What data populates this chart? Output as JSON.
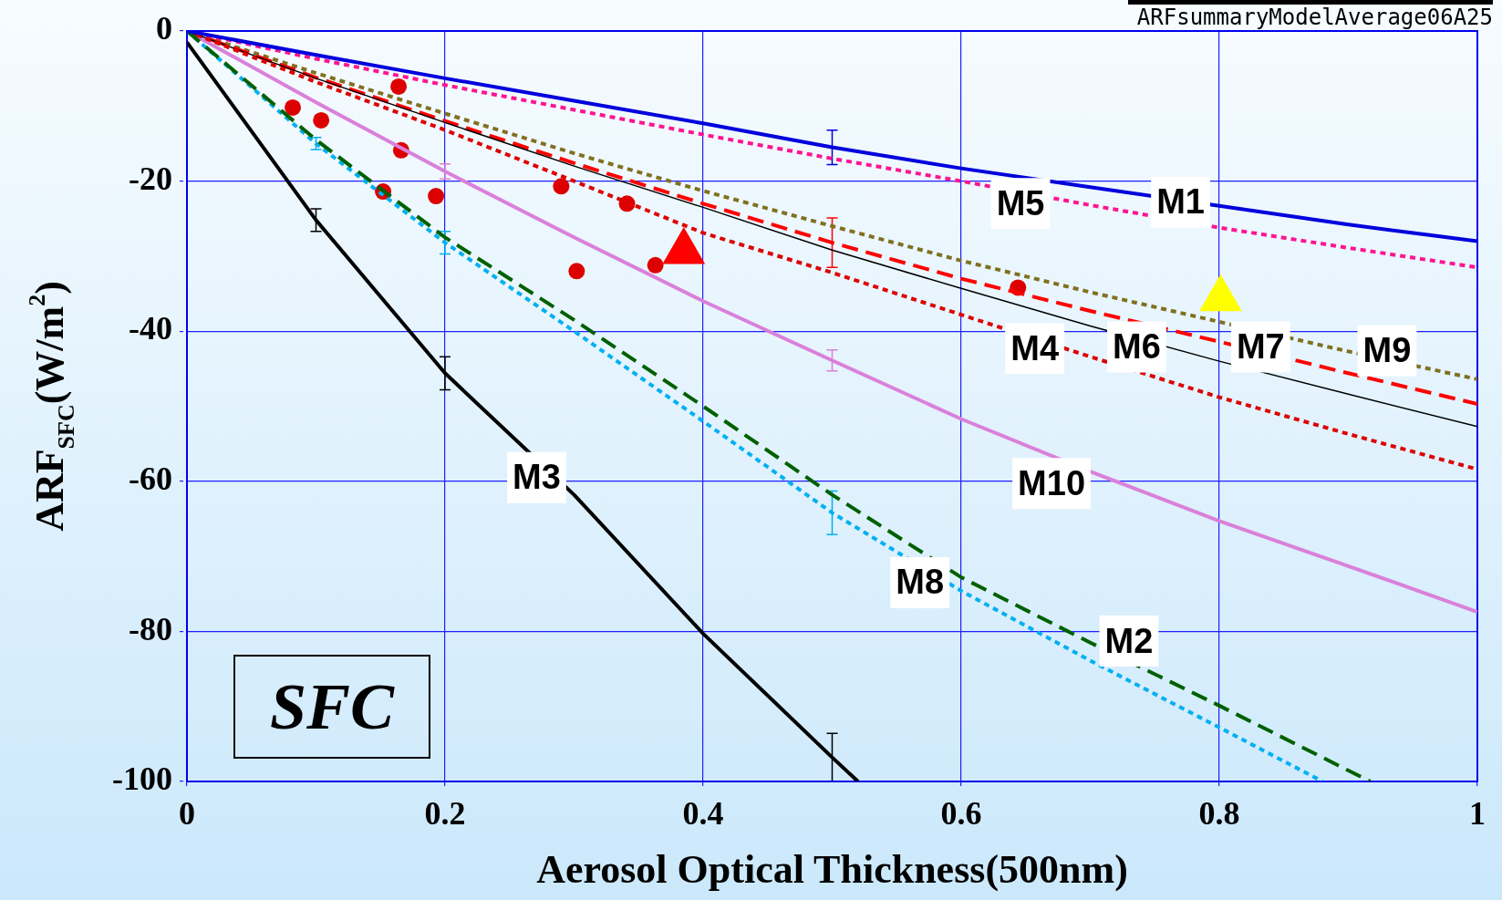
{
  "chart_data": {
    "type": "line",
    "xlabel": "Aerosol Optical Thickness(500nm)",
    "ylabel": "ARF$_{SFC}$(W/m$^{2}$)",
    "annotations": [
      "ARFsummaryModelAverage06A25",
      "SFC"
    ],
    "xlim": [
      0,
      1
    ],
    "xticks": [
      0,
      0.2,
      0.4,
      0.6,
      0.8,
      1
    ],
    "ylim": [
      -100,
      0
    ],
    "yticks": [
      -100,
      -80,
      -60,
      -40,
      -20,
      0
    ],
    "grid": true,
    "legend": false,
    "marker": "none",
    "series": [
      {
        "name": "M1",
        "type": "line",
        "color": "#0000dd",
        "line_style": "solid",
        "x": [
          0,
          0.1,
          0.2,
          0.3,
          0.4,
          0.5,
          0.6,
          0.7,
          0.8,
          0.9,
          1
        ],
        "values": [
          0,
          -3.2,
          -6.3,
          -9.3,
          -12.3,
          -15.5,
          -18.3,
          -20.8,
          -23.3,
          -25.8,
          -28
        ],
        "errors": [
          null,
          null,
          null,
          null,
          null,
          2.3,
          null,
          null,
          null,
          null,
          null
        ]
      },
      {
        "name": "M2",
        "type": "line",
        "color": "#006000",
        "line_style": "dashed",
        "x": [
          0,
          0.1,
          0.2,
          0.3,
          0.4,
          0.5,
          0.6,
          0.7,
          0.8,
          0.917
        ],
        "values": [
          0,
          -14.5,
          -27.5,
          -38.5,
          -50,
          -61.8,
          -72.8,
          -81.5,
          -89.9,
          -100
        ]
      },
      {
        "name": "M3",
        "type": "line",
        "color": "#000000",
        "line_style": "solid",
        "x": [
          0,
          0.1,
          0.2,
          0.3,
          0.4,
          0.5,
          0.52
        ],
        "values": [
          -1.5,
          -25.2,
          -45.6,
          -61.8,
          -80.3,
          -96.8,
          -100
        ],
        "errors": [
          null,
          1.5,
          2.2,
          null,
          null,
          3.2,
          null
        ]
      },
      {
        "name": "M4",
        "type": "line",
        "color": "#dd0000",
        "line_style": "dotted",
        "x": [
          0,
          0.1,
          0.2,
          0.3,
          0.4,
          0.5,
          0.6,
          0.7,
          0.8,
          0.9,
          1
        ],
        "values": [
          0,
          -6.8,
          -13.2,
          -20,
          -26.9,
          -32.2,
          -37.8,
          -43.4,
          -48.8,
          -53.7,
          -58.4
        ]
      },
      {
        "name": "M5",
        "type": "line",
        "color": "#ff1493",
        "line_style": "dotted",
        "x": [
          0,
          0.1,
          0.2,
          0.3,
          0.4,
          0.5,
          0.6,
          0.7,
          0.8,
          0.9,
          1
        ],
        "values": [
          0,
          -3.7,
          -7.2,
          -10.5,
          -13.8,
          -17,
          -20,
          -23.2,
          -26.2,
          -28.9,
          -31.5
        ]
      },
      {
        "name": "M6",
        "type": "line",
        "color": "#000000",
        "line_style": "solid",
        "x": [
          0,
          0.1,
          0.2,
          0.3,
          0.4,
          0.5,
          0.6,
          0.7,
          0.8,
          0.9,
          1
        ],
        "values": [
          0,
          -6.3,
          -12.2,
          -18,
          -23.5,
          -29.2,
          -34.3,
          -39.3,
          -44,
          -48.4,
          -52.7
        ]
      },
      {
        "name": "M7",
        "type": "line",
        "color": "#ff0000",
        "line_style": "dashed",
        "x": [
          0,
          0.1,
          0.2,
          0.3,
          0.4,
          0.5,
          0.6,
          0.7,
          0.8,
          0.9,
          1
        ],
        "values": [
          0,
          -6.2,
          -12,
          -17.6,
          -23,
          -28.2,
          -33,
          -37.3,
          -41.4,
          -45.6,
          -49.7
        ],
        "errors": [
          null,
          null,
          null,
          null,
          null,
          3.3,
          null,
          null,
          null,
          null,
          null
        ]
      },
      {
        "name": "M8",
        "type": "line",
        "color": "#00b0f0",
        "line_style": "dotted",
        "x": [
          0,
          0.1,
          0.2,
          0.3,
          0.4,
          0.5,
          0.6,
          0.7,
          0.8,
          0.88
        ],
        "values": [
          0,
          -15,
          -28.2,
          -40,
          -52,
          -64.2,
          -74.6,
          -83.9,
          -92.8,
          -100
        ],
        "errors": [
          null,
          0.8,
          1.5,
          null,
          null,
          2.9,
          null,
          null,
          null,
          null
        ]
      },
      {
        "name": "M9",
        "type": "line",
        "color": "#807020",
        "line_style": "dotted",
        "x": [
          0,
          0.1,
          0.2,
          0.3,
          0.4,
          0.5,
          0.6,
          0.7,
          0.8,
          0.9,
          1
        ],
        "values": [
          0,
          -5.6,
          -11,
          -16.3,
          -21.3,
          -26,
          -30.6,
          -34.8,
          null,
          -42.7,
          -46.4
        ]
      },
      {
        "name": "M10",
        "type": "line",
        "color": "#da80da",
        "line_style": "solid",
        "x": [
          0,
          0.1,
          0.2,
          0.3,
          0.4,
          0.5,
          0.6,
          0.7,
          0.8,
          0.9,
          1
        ],
        "values": [
          0,
          -9.5,
          -18.7,
          -27.5,
          -36,
          -43.9,
          -51.7,
          -58.7,
          -65.3,
          -71.3,
          -77.4
        ],
        "errors": [
          null,
          null,
          1,
          null,
          null,
          1.4,
          null,
          null,
          null,
          null,
          null
        ]
      },
      {
        "type": "scatter",
        "marker": "circle",
        "color": "#dd0000",
        "x": [
          0.082,
          0.104,
          0.164,
          0.152,
          0.166,
          0.193,
          0.29,
          0.302,
          0.341,
          0.363,
          0.644
        ],
        "values": [
          -10.2,
          -11.9,
          -7.4,
          -21.4,
          -15.9,
          -22,
          -20.7,
          -32,
          -23,
          -31.2,
          -34.2
        ]
      },
      {
        "type": "scatter",
        "marker": "triangle",
        "color": "#ff0000",
        "x": [
          0.385
        ],
        "values": [
          -29.4
        ]
      },
      {
        "type": "scatter",
        "marker": "triangle",
        "color": "#ffff00",
        "x": [
          0.801
        ],
        "values": [
          -35.7
        ]
      }
    ]
  }
}
